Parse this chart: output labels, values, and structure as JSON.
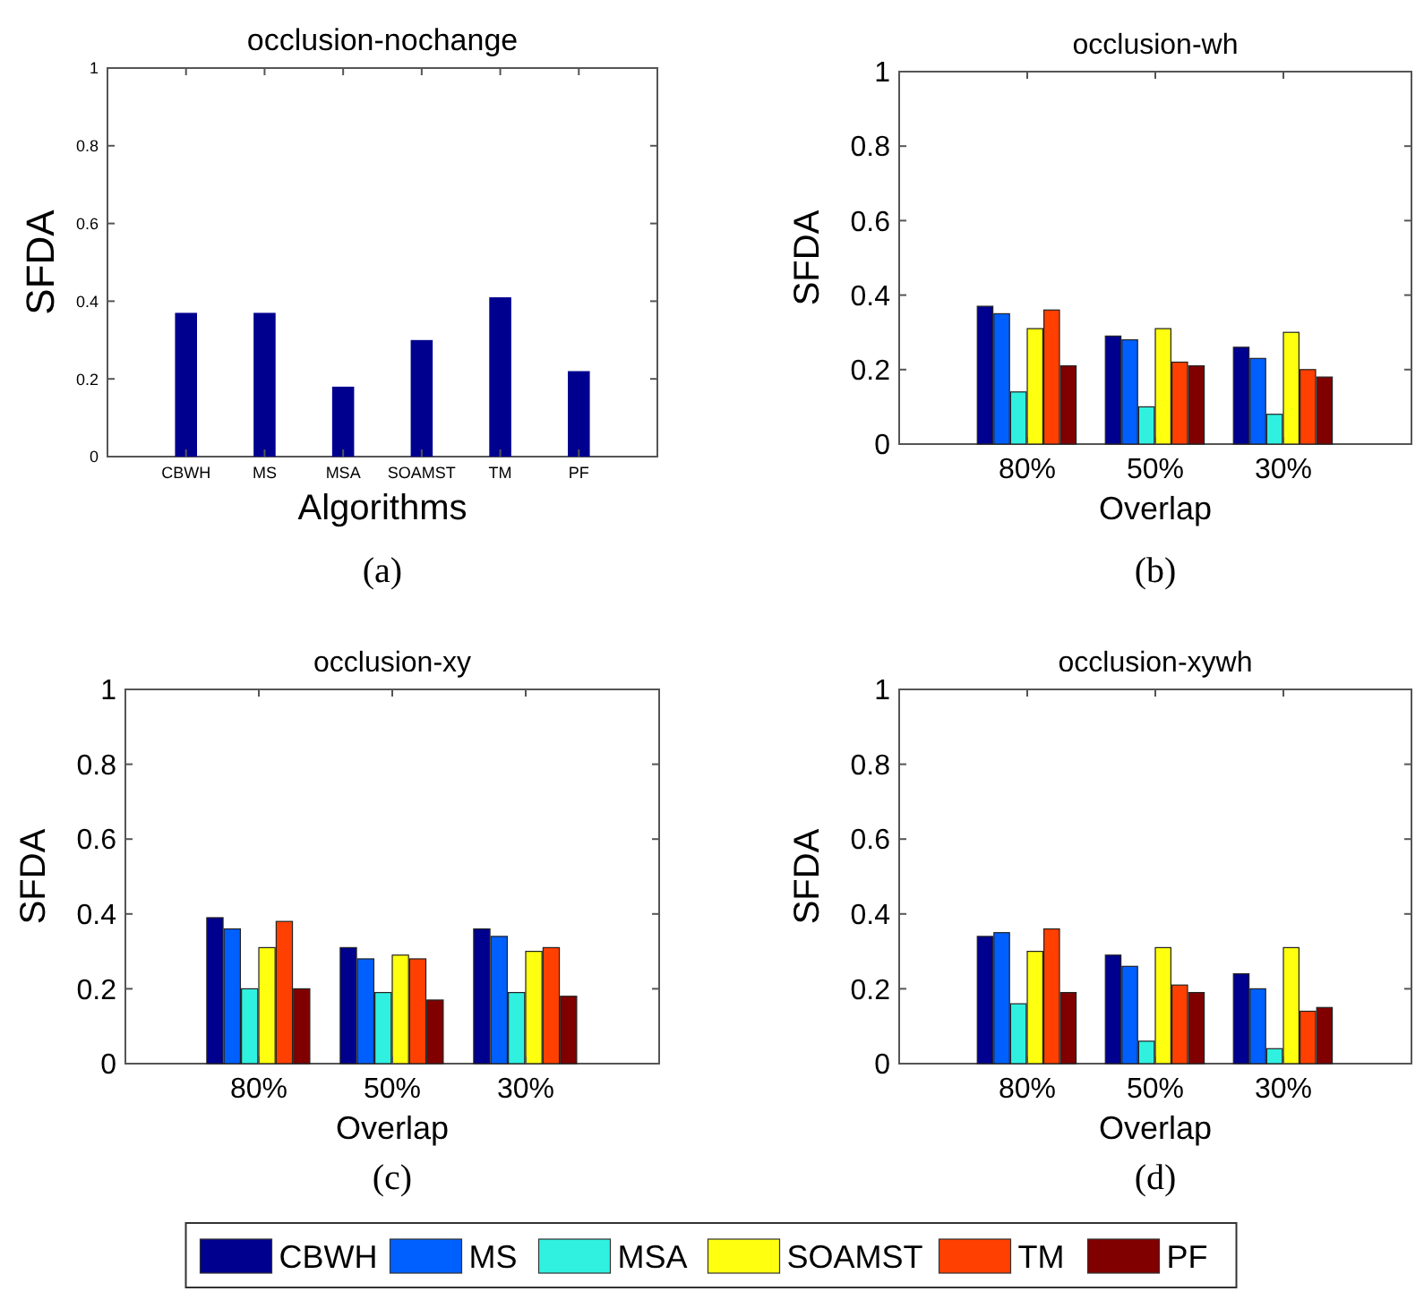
{
  "chart_data": [
    {
      "type": "bar",
      "title": "occlusion-nochange",
      "xlabel": "Algorithms",
      "ylabel": "SFDA",
      "categories": [
        "CBWH",
        "MS",
        "MSA",
        "SOAMST",
        "TM",
        "PF"
      ],
      "values": [
        0.37,
        0.37,
        0.18,
        0.3,
        0.41,
        0.22
      ],
      "color": "#00008f",
      "ylim": [
        0,
        1
      ],
      "yticks": [
        0,
        0.2,
        0.4,
        0.6,
        0.8,
        1
      ],
      "annotations": [
        "(a)"
      ]
    },
    {
      "type": "bar",
      "title": "occlusion-wh",
      "xlabel": "Overlap",
      "ylabel": "SFDA",
      "categories": [
        "80%",
        "50%",
        "30%"
      ],
      "ylim": [
        0,
        1
      ],
      "yticks": [
        0,
        0.2,
        0.4,
        0.6,
        0.8,
        1
      ],
      "legend": "bottom",
      "annotations": [
        "(b)"
      ],
      "series": [
        {
          "name": "CBWH",
          "color": "#00008f",
          "values": [
            0.37,
            0.29,
            0.26
          ]
        },
        {
          "name": "MS",
          "color": "#0060ff",
          "values": [
            0.35,
            0.28,
            0.23
          ]
        },
        {
          "name": "MSA",
          "color": "#30f0e0",
          "values": [
            0.14,
            0.1,
            0.08
          ]
        },
        {
          "name": "SOAMST",
          "color": "#ffff10",
          "values": [
            0.31,
            0.31,
            0.3
          ]
        },
        {
          "name": "TM",
          "color": "#ff4000",
          "values": [
            0.36,
            0.22,
            0.2
          ]
        },
        {
          "name": "PF",
          "color": "#800000",
          "values": [
            0.21,
            0.21,
            0.18
          ]
        }
      ]
    },
    {
      "type": "bar",
      "title": "occlusion-xy",
      "xlabel": "Overlap",
      "ylabel": "SFDA",
      "categories": [
        "80%",
        "50%",
        "30%"
      ],
      "ylim": [
        0,
        1
      ],
      "yticks": [
        0,
        0.2,
        0.4,
        0.6,
        0.8,
        1
      ],
      "legend": "bottom",
      "annotations": [
        "(c)"
      ],
      "series": [
        {
          "name": "CBWH",
          "color": "#00008f",
          "values": [
            0.39,
            0.31,
            0.36
          ]
        },
        {
          "name": "MS",
          "color": "#0060ff",
          "values": [
            0.36,
            0.28,
            0.34
          ]
        },
        {
          "name": "MSA",
          "color": "#30f0e0",
          "values": [
            0.2,
            0.19,
            0.19
          ]
        },
        {
          "name": "SOAMST",
          "color": "#ffff10",
          "values": [
            0.31,
            0.29,
            0.3
          ]
        },
        {
          "name": "TM",
          "color": "#ff4000",
          "values": [
            0.38,
            0.28,
            0.31
          ]
        },
        {
          "name": "PF",
          "color": "#800000",
          "values": [
            0.2,
            0.17,
            0.18
          ]
        }
      ]
    },
    {
      "type": "bar",
      "title": "occlusion-xywh",
      "xlabel": "Overlap",
      "ylabel": "SFDA",
      "categories": [
        "80%",
        "50%",
        "30%"
      ],
      "ylim": [
        0,
        1
      ],
      "yticks": [
        0,
        0.2,
        0.4,
        0.6,
        0.8,
        1
      ],
      "legend": "bottom",
      "annotations": [
        "(d)"
      ],
      "series": [
        {
          "name": "CBWH",
          "color": "#00008f",
          "values": [
            0.34,
            0.29,
            0.24
          ]
        },
        {
          "name": "MS",
          "color": "#0060ff",
          "values": [
            0.35,
            0.26,
            0.2
          ]
        },
        {
          "name": "MSA",
          "color": "#30f0e0",
          "values": [
            0.16,
            0.06,
            0.04
          ]
        },
        {
          "name": "SOAMST",
          "color": "#ffff10",
          "values": [
            0.3,
            0.31,
            0.31
          ]
        },
        {
          "name": "TM",
          "color": "#ff4000",
          "values": [
            0.36,
            0.21,
            0.14
          ]
        },
        {
          "name": "PF",
          "color": "#800000",
          "values": [
            0.19,
            0.19,
            0.15
          ]
        }
      ]
    }
  ]
}
